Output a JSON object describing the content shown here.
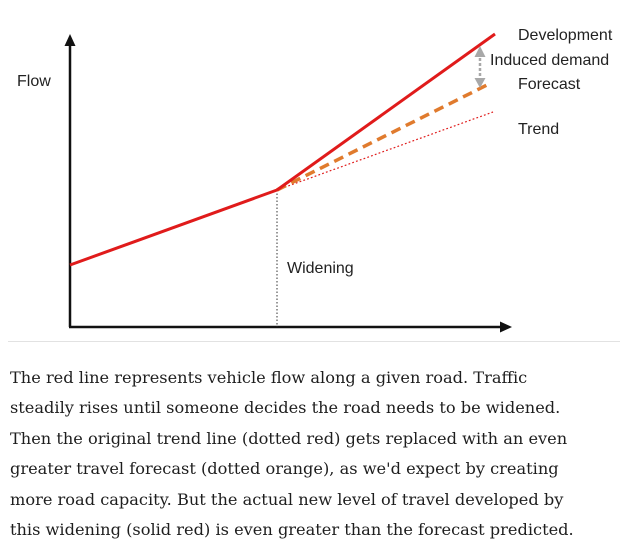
{
  "diagram": {
    "y_axis_label": "Flow",
    "event_label": "Widening",
    "lines": {
      "development": "Development",
      "induced_demand": "Induced demand",
      "forecast": "Forecast",
      "trend": "Trend"
    },
    "colors": {
      "development": "#e01b1b",
      "forecast": "#e07b2e",
      "trend": "#e01b1b",
      "induced_demand_arrow": "#a8a8a8",
      "axes": "#111111"
    }
  },
  "caption": {
    "lines": [
      "The red line represents vehicle flow along a given road. Traffic",
      "steadily rises until someone decides the road needs to be widened.",
      "Then the original trend line (dotted red) gets replaced with an even",
      "greater travel forecast (dotted orange), as we'd expect by creating",
      "more road capacity. But the actual new level of travel developed by",
      "this widening (solid red) is even greater than the forecast predicted."
    ]
  }
}
